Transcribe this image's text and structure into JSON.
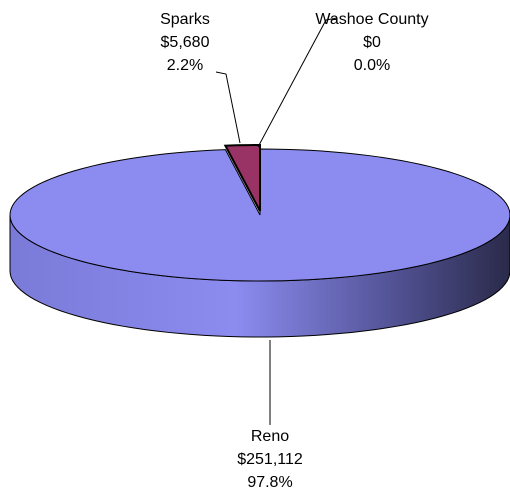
{
  "chart_data": {
    "type": "pie3d",
    "categories": [
      "Reno",
      "Sparks",
      "Washoe County"
    ],
    "values": [
      251112,
      5680,
      0
    ],
    "value_labels": [
      "$251,112",
      "$5,680",
      "$0"
    ],
    "percents": [
      97.8,
      2.2,
      0.0
    ],
    "percent_labels": [
      "97.8%",
      "2.2%",
      "0.0%"
    ],
    "colors": [
      "#8c8cf0",
      "#993366",
      "#c0c0c0"
    ]
  }
}
